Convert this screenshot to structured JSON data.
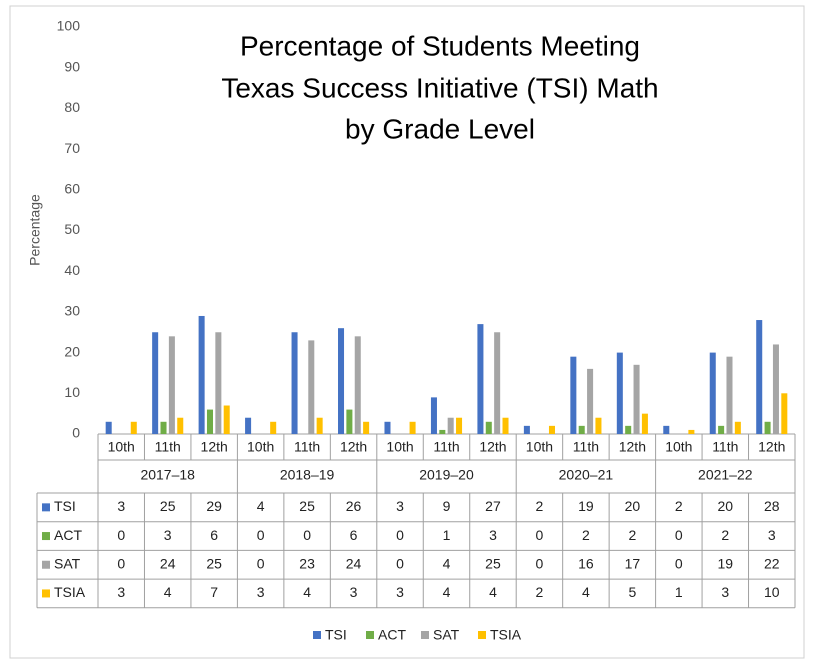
{
  "chart_data": {
    "type": "bar",
    "title": [
      "Percentage of Students Meeting",
      "Texas Success Initiative (TSI) Math",
      "by Grade Level"
    ],
    "y_label": "Percentage",
    "groups": [
      {
        "name": "2017–18",
        "categories": [
          "10th",
          "11th",
          "12th"
        ]
      },
      {
        "name": "2018–19",
        "categories": [
          "10th",
          "11th",
          "12th"
        ]
      },
      {
        "name": "2019–20",
        "categories": [
          "10th",
          "11th",
          "12th"
        ]
      },
      {
        "name": "2020–21",
        "categories": [
          "10th",
          "11th",
          "12th"
        ]
      },
      {
        "name": "2021–22",
        "categories": [
          "10th",
          "11th",
          "12th"
        ]
      }
    ],
    "series": [
      {
        "name": "TSI",
        "color": "#4472c4",
        "values": [
          3,
          25,
          29,
          4,
          25,
          26,
          3,
          9,
          27,
          2,
          19,
          20,
          2,
          20,
          28
        ]
      },
      {
        "name": "ACT",
        "color": "#70ad47",
        "values": [
          0,
          3,
          6,
          0,
          0,
          6,
          0,
          1,
          3,
          0,
          2,
          2,
          0,
          2,
          3
        ]
      },
      {
        "name": "SAT",
        "color": "#a5a5a5",
        "values": [
          0,
          24,
          25,
          0,
          23,
          24,
          0,
          4,
          25,
          0,
          16,
          17,
          0,
          19,
          22
        ]
      },
      {
        "name": "TSIA",
        "color": "#ffc000",
        "values": [
          3,
          4,
          7,
          3,
          4,
          3,
          3,
          4,
          4,
          2,
          4,
          5,
          1,
          3,
          10
        ]
      }
    ],
    "ylim": [
      0,
      100
    ],
    "yticks": [
      0,
      10,
      20,
      30,
      40,
      50,
      60,
      70,
      80,
      90,
      100
    ],
    "grid": false,
    "legend": "bottom"
  }
}
